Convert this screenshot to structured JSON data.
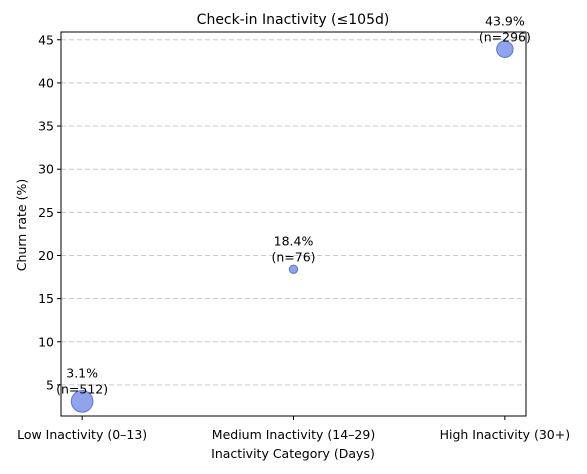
{
  "chart_data": {
    "type": "scatter",
    "title": "Check-in Inactivity (≤105d)",
    "xlabel": "Inactivity Category (Days)",
    "ylabel": "Churn rate (%)",
    "categories": [
      "Low Inactivity (0–13)",
      "Medium Inactivity (14–29)",
      "High Inactivity (30+)"
    ],
    "points": [
      {
        "category": "Low Inactivity (0–13)",
        "churn_rate": 3.1,
        "n": 512,
        "label_value": "3.1%",
        "label_n": "(n=512)"
      },
      {
        "category": "Medium Inactivity (14–29)",
        "churn_rate": 18.4,
        "n": 76,
        "label_value": "18.4%",
        "label_n": "(n=76)"
      },
      {
        "category": "High Inactivity (30+)",
        "churn_rate": 43.9,
        "n": 296,
        "label_value": "43.9%",
        "label_n": "(n=296)"
      }
    ],
    "ylim": [
      1.4,
      45.9
    ],
    "yticks": [
      5,
      10,
      15,
      20,
      25,
      30,
      35,
      40,
      45
    ],
    "xlim": [
      -0.1,
      2.1
    ],
    "grid": "y-dashed",
    "marker_color": "#6f8ae8",
    "marker_edge_color": "#5a73d6",
    "gridline_color": "#c8c8c8"
  }
}
